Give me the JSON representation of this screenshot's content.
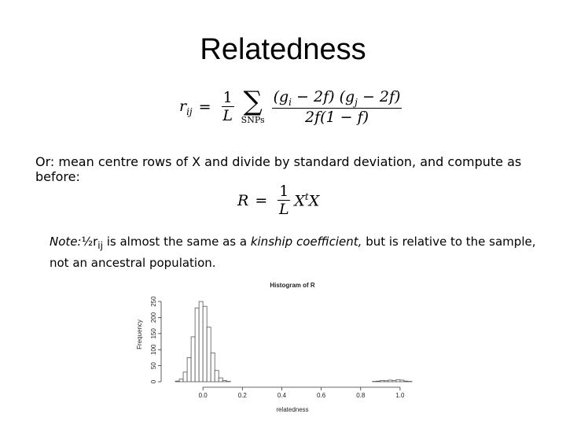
{
  "title": "Relatedness",
  "formula1": {
    "lhs": "r",
    "lhs_sub": "ij",
    "eq": "=",
    "coef_num": "1",
    "coef_den": "L",
    "sum": "∑",
    "sum_sub": "SNPs",
    "num_parts": [
      "(g",
      "i",
      " − 2f) (g",
      "j",
      " − 2f)"
    ],
    "den": "2f(1 − f)"
  },
  "text": "Or: mean centre rows of X and divide by standard deviation, and compute as before:",
  "formula2": {
    "lhs": "R",
    "eq": "=",
    "coef_num": "1",
    "coef_den": "L",
    "m1": "X",
    "m1_sup": "t",
    "m2": "X"
  },
  "note": {
    "label": "Note:",
    "half": "½r",
    "half_sub": "ij",
    "t1": " is almost the same as a ",
    "term": "kinship coefficient,",
    "t2": " but is relative to the sample,",
    "t3": "not an ancestral population."
  },
  "chart_data": {
    "type": "histogram",
    "title": "Histogram of R",
    "x_label": "relatedness",
    "y_label": "Frequency",
    "bins": [
      -0.14,
      -0.12,
      -0.1,
      -0.08,
      -0.06,
      -0.04,
      -0.02,
      0,
      0.02,
      0.04,
      0.06,
      0.08,
      0.1,
      0.12,
      0.14,
      0.16,
      0.18,
      0.2,
      0.22,
      0.24,
      0.26,
      0.28,
      0.3,
      0.32,
      0.34,
      0.36,
      0.38,
      0.4,
      0.42,
      0.44,
      0.46,
      0.48,
      0.5,
      0.52,
      0.54,
      0.56,
      0.58,
      0.6,
      0.62,
      0.64,
      0.66,
      0.68,
      0.7,
      0.72,
      0.74,
      0.76,
      0.78,
      0.8,
      0.82,
      0.84,
      0.86,
      0.88,
      0.9,
      0.92,
      0.94,
      0.96,
      0.98,
      1,
      1.02,
      1.04,
      1.06
    ],
    "values": [
      2,
      8,
      30,
      75,
      140,
      230,
      250,
      235,
      170,
      90,
      35,
      12,
      4,
      1,
      0,
      0,
      0,
      0,
      0,
      0,
      0,
      0,
      0,
      0,
      0,
      0,
      0,
      0,
      0,
      0,
      0,
      0,
      0,
      0,
      0,
      0,
      0,
      0,
      0,
      0,
      0,
      0,
      0,
      0,
      0,
      0,
      0,
      0,
      0,
      0,
      1,
      2,
      4,
      3,
      5,
      4,
      6,
      5,
      2,
      1
    ],
    "color": "#555555",
    "xlim": [
      -0.2,
      1.1
    ],
    "ylim": [
      0,
      260
    ],
    "xticks": [
      {
        "value": 0,
        "label": "0.0"
      },
      0.2,
      0.4,
      0.6,
      0.8,
      {
        "value": 1,
        "label": "1.0"
      }
    ],
    "yticks": [
      0,
      50,
      100,
      150,
      200,
      250
    ]
  }
}
